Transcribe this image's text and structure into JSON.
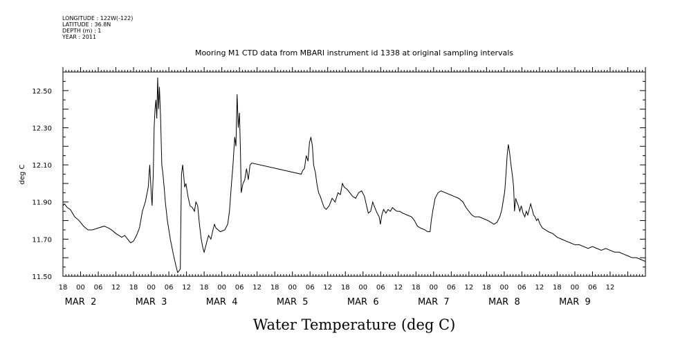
{
  "header": {
    "lines": [
      "LONGITUDE : 122W(-122)",
      "LATITUDE : 36.8N",
      "DEPTH (m) : 1",
      "YEAR : 2011"
    ]
  },
  "chart_data": {
    "type": "line",
    "title": "Mooring M1 CTD data from MBARI instrument id 1338 at original sampling intervals",
    "xlabel": "Water Temperature (deg C)",
    "ylabel": "deg C",
    "x_unit": "hours since MAR 1 18:00",
    "xlim": [
      0,
      198
    ],
    "ylim": [
      11.5,
      12.6
    ],
    "y_ticks": [
      "11.50",
      "11.70",
      "11.90",
      "12.10",
      "12.30",
      "12.50"
    ],
    "x_tick_labels": [
      "18",
      "00",
      "06",
      "12",
      "18",
      "00",
      "06",
      "12",
      "18",
      "00",
      "06",
      "12",
      "18",
      "00",
      "06",
      "12",
      "18",
      "00",
      "06",
      "12",
      "18",
      "00",
      "06",
      "12",
      "18",
      "00",
      "06",
      "12",
      "18",
      "00",
      "06",
      "12"
    ],
    "x_date_labels": [
      {
        "text": "MAR  2",
        "hour": 6
      },
      {
        "text": "MAR  3",
        "hour": 30
      },
      {
        "text": "MAR  4",
        "hour": 54
      },
      {
        "text": "MAR  5",
        "hour": 78
      },
      {
        "text": "MAR  6",
        "hour": 102
      },
      {
        "text": "MAR  7",
        "hour": 126
      },
      {
        "text": "MAR  8",
        "hour": 150
      },
      {
        "text": "MAR  9",
        "hour": 174
      }
    ],
    "series": [
      {
        "points": [
          [
            0,
            11.88
          ],
          [
            0.5,
            11.89
          ],
          [
            1.5,
            11.87
          ],
          [
            2.5,
            11.86
          ],
          [
            4,
            11.82
          ],
          [
            5.5,
            11.8
          ],
          [
            7,
            11.77
          ],
          [
            8.5,
            11.75
          ],
          [
            10,
            11.75
          ],
          [
            12,
            11.76
          ],
          [
            14,
            11.77
          ],
          [
            15.5,
            11.76
          ],
          [
            16.5,
            11.75
          ],
          [
            18,
            11.73
          ],
          [
            20,
            11.71
          ],
          [
            21,
            11.72
          ],
          [
            22,
            11.7
          ],
          [
            23,
            11.68
          ],
          [
            24,
            11.69
          ],
          [
            25,
            11.72
          ],
          [
            26,
            11.76
          ],
          [
            27,
            11.85
          ],
          [
            28,
            11.9
          ],
          [
            29,
            11.98
          ],
          [
            29.5,
            12.1
          ],
          [
            30,
            11.95
          ],
          [
            30.3,
            11.88
          ],
          [
            30.7,
            12.05
          ],
          [
            31,
            12.3
          ],
          [
            31.3,
            12.4
          ],
          [
            31.6,
            12.45
          ],
          [
            31.9,
            12.35
          ],
          [
            32.2,
            12.57
          ],
          [
            32.5,
            12.4
          ],
          [
            32.8,
            12.52
          ],
          [
            33.2,
            12.35
          ],
          [
            33.6,
            12.1
          ],
          [
            34,
            12.05
          ],
          [
            34.4,
            11.98
          ],
          [
            34.8,
            11.9
          ],
          [
            35.5,
            11.8
          ],
          [
            36.5,
            11.7
          ],
          [
            37.5,
            11.62
          ],
          [
            38.5,
            11.55
          ],
          [
            39,
            11.52
          ],
          [
            39.5,
            11.53
          ],
          [
            39.9,
            11.54
          ],
          [
            40,
            11.7
          ],
          [
            40.3,
            12.05
          ],
          [
            40.7,
            12.1
          ],
          [
            41,
            12.05
          ],
          [
            41.4,
            11.98
          ],
          [
            41.8,
            12.0
          ],
          [
            42.5,
            11.93
          ],
          [
            43.2,
            11.88
          ],
          [
            44,
            11.87
          ],
          [
            44.7,
            11.85
          ],
          [
            45.2,
            11.9
          ],
          [
            45.8,
            11.88
          ],
          [
            46.4,
            11.78
          ],
          [
            47,
            11.7
          ],
          [
            47.6,
            11.65
          ],
          [
            48,
            11.63
          ],
          [
            48.8,
            11.68
          ],
          [
            49.5,
            11.72
          ],
          [
            50.3,
            11.7
          ],
          [
            51,
            11.75
          ],
          [
            51.5,
            11.78
          ],
          [
            52,
            11.76
          ],
          [
            53.5,
            11.74
          ],
          [
            55,
            11.75
          ],
          [
            56,
            11.78
          ],
          [
            56.6,
            11.85
          ],
          [
            57.2,
            11.98
          ],
          [
            57.8,
            12.1
          ],
          [
            58.4,
            12.25
          ],
          [
            58.8,
            12.2
          ],
          [
            59.2,
            12.48
          ],
          [
            59.6,
            12.3
          ],
          [
            60,
            12.38
          ],
          [
            60.3,
            12.2
          ],
          [
            60.6,
            11.95
          ],
          [
            61.2,
            12.0
          ],
          [
            61.8,
            12.02
          ],
          [
            62.4,
            12.08
          ],
          [
            63,
            12.02
          ],
          [
            63.6,
            12.1
          ],
          [
            64.2,
            12.11
          ],
          [
            81,
            12.05
          ],
          [
            81.5,
            12.07
          ],
          [
            82.1,
            12.08
          ],
          [
            82.7,
            12.15
          ],
          [
            83.3,
            12.12
          ],
          [
            83.8,
            12.22
          ],
          [
            84.3,
            12.25
          ],
          [
            84.8,
            12.2
          ],
          [
            85.2,
            12.1
          ],
          [
            85.8,
            12.06
          ],
          [
            86.3,
            12.0
          ],
          [
            86.9,
            11.95
          ],
          [
            87.5,
            11.93
          ],
          [
            88.1,
            11.9
          ],
          [
            88.8,
            11.87
          ],
          [
            89.5,
            11.86
          ],
          [
            90.5,
            11.88
          ],
          [
            91.5,
            11.92
          ],
          [
            92.5,
            11.9
          ],
          [
            93.5,
            11.95
          ],
          [
            94.3,
            11.94
          ],
          [
            95,
            12.0
          ],
          [
            95.6,
            11.98
          ],
          [
            96.5,
            11.97
          ],
          [
            97.5,
            11.95
          ],
          [
            98.5,
            11.93
          ],
          [
            99.5,
            11.92
          ],
          [
            100.5,
            11.95
          ],
          [
            101.5,
            11.96
          ],
          [
            102.5,
            11.93
          ],
          [
            103.2,
            11.88
          ],
          [
            103.8,
            11.84
          ],
          [
            104.6,
            11.85
          ],
          [
            105.3,
            11.9
          ],
          [
            106,
            11.87
          ],
          [
            106.8,
            11.84
          ],
          [
            107.5,
            11.82
          ],
          [
            107.9,
            11.78
          ],
          [
            108.4,
            11.83
          ],
          [
            109,
            11.86
          ],
          [
            109.8,
            11.84
          ],
          [
            110.5,
            11.86
          ],
          [
            111.3,
            11.85
          ],
          [
            112,
            11.87
          ],
          [
            112.7,
            11.86
          ],
          [
            113.5,
            11.85
          ],
          [
            114.5,
            11.85
          ],
          [
            115.5,
            11.84
          ],
          [
            117,
            11.83
          ],
          [
            118.5,
            11.82
          ],
          [
            119.5,
            11.8
          ],
          [
            120.5,
            11.77
          ],
          [
            121.5,
            11.76
          ],
          [
            123,
            11.75
          ],
          [
            124,
            11.74
          ],
          [
            124.8,
            11.74
          ],
          [
            125.2,
            11.8
          ],
          [
            125.8,
            11.86
          ],
          [
            126.5,
            11.92
          ],
          [
            127.5,
            11.95
          ],
          [
            128.5,
            11.96
          ],
          [
            130,
            11.95
          ],
          [
            131.5,
            11.94
          ],
          [
            133,
            11.93
          ],
          [
            134.5,
            11.92
          ],
          [
            136,
            11.9
          ],
          [
            137,
            11.87
          ],
          [
            138,
            11.85
          ],
          [
            139,
            11.83
          ],
          [
            140,
            11.82
          ],
          [
            141.5,
            11.82
          ],
          [
            143,
            11.81
          ],
          [
            144.5,
            11.8
          ],
          [
            145.5,
            11.79
          ],
          [
            146.5,
            11.78
          ],
          [
            147.5,
            11.79
          ],
          [
            148.5,
            11.82
          ],
          [
            149.2,
            11.86
          ],
          [
            149.8,
            11.92
          ],
          [
            150.2,
            11.96
          ],
          [
            150.6,
            12.05
          ],
          [
            151,
            12.15
          ],
          [
            151.4,
            12.21
          ],
          [
            151.8,
            12.17
          ],
          [
            152.3,
            12.1
          ],
          [
            152.8,
            12.04
          ],
          [
            153.2,
            11.98
          ],
          [
            153.5,
            11.85
          ],
          [
            153.9,
            11.92
          ],
          [
            154.3,
            11.9
          ],
          [
            154.8,
            11.88
          ],
          [
            155.3,
            11.85
          ],
          [
            155.8,
            11.88
          ],
          [
            156.4,
            11.84
          ],
          [
            157,
            11.82
          ],
          [
            157.5,
            11.85
          ],
          [
            158,
            11.83
          ],
          [
            158.5,
            11.86
          ],
          [
            159,
            11.89
          ],
          [
            159.5,
            11.86
          ],
          [
            160,
            11.83
          ],
          [
            160.5,
            11.82
          ],
          [
            161,
            11.8
          ],
          [
            161.5,
            11.81
          ],
          [
            162.2,
            11.78
          ],
          [
            163,
            11.76
          ],
          [
            164,
            11.75
          ],
          [
            165,
            11.74
          ],
          [
            166.5,
            11.73
          ],
          [
            168,
            11.71
          ],
          [
            169.5,
            11.7
          ],
          [
            171,
            11.69
          ],
          [
            172.5,
            11.68
          ],
          [
            174,
            11.67
          ],
          [
            175.5,
            11.67
          ],
          [
            177,
            11.66
          ],
          [
            178.5,
            11.65
          ],
          [
            180,
            11.66
          ],
          [
            181.5,
            11.65
          ],
          [
            183,
            11.64
          ],
          [
            184.5,
            11.65
          ],
          [
            186,
            11.64
          ],
          [
            187.5,
            11.63
          ],
          [
            189,
            11.63
          ],
          [
            190.5,
            11.62
          ],
          [
            192,
            11.61
          ],
          [
            193.5,
            11.6
          ],
          [
            195,
            11.6
          ],
          [
            196.5,
            11.59
          ],
          [
            198,
            11.58
          ]
        ]
      }
    ]
  }
}
